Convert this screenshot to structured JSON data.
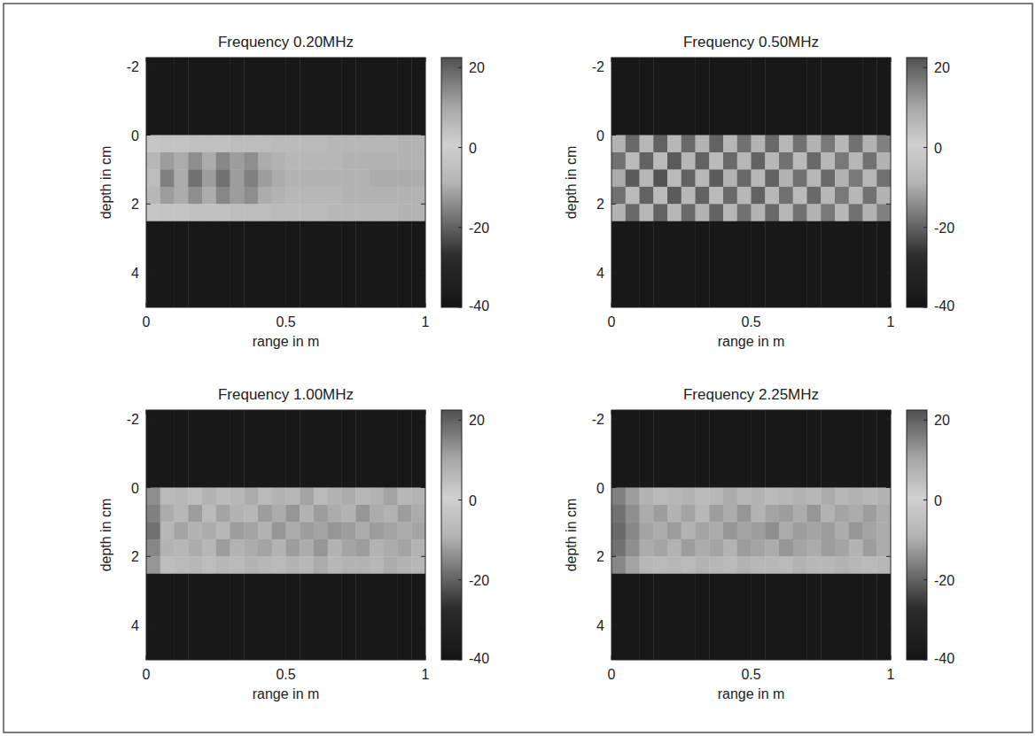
{
  "chart_data": [
    {
      "type": "heatmap",
      "title": "Frequency 0.20MHz",
      "x_label": "range in m",
      "y_label": "depth in cm",
      "xlim": [
        0,
        1
      ],
      "xticks": [
        0,
        0.5,
        1
      ],
      "ylim": [
        5,
        -2.25
      ],
      "yticks": [
        -2,
        0,
        2,
        4
      ],
      "x_edges": [
        0,
        0.05,
        0.1,
        0.15,
        0.2,
        0.25,
        0.3,
        0.35,
        0.4,
        0.45,
        0.5,
        0.55,
        0.6,
        0.65,
        0.7,
        0.75,
        0.8,
        0.85,
        0.9,
        0.95,
        1
      ],
      "y_edges": [
        -2.25,
        0,
        0.5,
        1,
        1.5,
        2,
        2.5,
        5
      ],
      "colorbar_range": [
        -40,
        22.5
      ],
      "colorbar_ticks": [
        20,
        0,
        -20,
        -40
      ],
      "cells": [
        [
          -38,
          -38,
          -38,
          -38,
          -38,
          -38,
          -38,
          -38,
          -38,
          -38,
          -38,
          -38,
          -38,
          -38,
          -38,
          -38,
          -38,
          -38,
          -38,
          -38
        ],
        [
          -3,
          -4,
          -4,
          -5,
          -5,
          -5,
          -6,
          -6,
          -6,
          -7,
          -7,
          -7,
          -7,
          -8,
          -8,
          -8,
          -8,
          -8,
          -9,
          -9
        ],
        [
          -8,
          -12,
          -10,
          -14,
          -10,
          -15,
          -12,
          -14,
          -10,
          -9,
          -8,
          -8,
          -8,
          -8,
          -9,
          -9,
          -9,
          -9,
          -9,
          -9
        ],
        [
          -6,
          -16,
          -10,
          -18,
          -12,
          -18,
          -12,
          -16,
          -12,
          -10,
          -9,
          -9,
          -9,
          -9,
          -9,
          -9,
          -10,
          -10,
          -10,
          -10
        ],
        [
          -8,
          -12,
          -10,
          -14,
          -10,
          -15,
          -12,
          -14,
          -10,
          -9,
          -8,
          -8,
          -8,
          -8,
          -9,
          -9,
          -9,
          -9,
          -9,
          -9
        ],
        [
          -3,
          -4,
          -4,
          -5,
          -5,
          -5,
          -6,
          -6,
          -6,
          -7,
          -7,
          -7,
          -7,
          -8,
          -8,
          -8,
          -8,
          -8,
          -9,
          -9
        ],
        [
          -38,
          -38,
          -38,
          -38,
          -38,
          -38,
          -38,
          -38,
          -38,
          -38,
          -38,
          -38,
          -38,
          -38,
          -38,
          -38,
          -38,
          -38,
          -38,
          -38
        ]
      ]
    },
    {
      "type": "heatmap",
      "title": "Frequency 0.50MHz",
      "x_label": "range in m",
      "y_label": "depth in cm",
      "xlim": [
        0,
        1
      ],
      "xticks": [
        0,
        0.5,
        1
      ],
      "ylim": [
        5,
        -2.25
      ],
      "yticks": [
        -2,
        0,
        2,
        4
      ],
      "x_edges": [
        0,
        0.05,
        0.1,
        0.15,
        0.2,
        0.25,
        0.3,
        0.35,
        0.4,
        0.45,
        0.5,
        0.55,
        0.6,
        0.65,
        0.7,
        0.75,
        0.8,
        0.85,
        0.9,
        0.95,
        1
      ],
      "y_edges": [
        -2.25,
        0,
        0.5,
        1,
        1.5,
        2,
        2.5,
        5
      ],
      "colorbar_range": [
        -40,
        22.5
      ],
      "colorbar_ticks": [
        20,
        0,
        -20,
        -40
      ],
      "cells": [
        [
          -38,
          -38,
          -38,
          -38,
          -38,
          -38,
          -38,
          -38,
          -38,
          -38,
          -38,
          -38,
          -38,
          -38,
          -38,
          -38,
          -38,
          -38,
          -38,
          -38
        ],
        [
          -9,
          -19,
          -8,
          -20,
          -8,
          -19,
          -9,
          -20,
          -8,
          -18,
          -9,
          -19,
          -8,
          -18,
          -9,
          -17,
          -8,
          -18,
          -9,
          -16
        ],
        [
          -18,
          -7,
          -20,
          -7,
          -21,
          -8,
          -20,
          -7,
          -19,
          -8,
          -20,
          -8,
          -18,
          -7,
          -19,
          -8,
          -17,
          -8,
          -18,
          -9
        ],
        [
          -10,
          -21,
          -8,
          -22,
          -7,
          -20,
          -8,
          -21,
          -9,
          -19,
          -8,
          -20,
          -9,
          -18,
          -8,
          -19,
          -9,
          -17,
          -8,
          -18
        ],
        [
          -18,
          -7,
          -20,
          -7,
          -21,
          -8,
          -20,
          -7,
          -19,
          -8,
          -20,
          -8,
          -18,
          -7,
          -19,
          -8,
          -17,
          -8,
          -18,
          -9
        ],
        [
          -9,
          -19,
          -8,
          -20,
          -8,
          -19,
          -9,
          -20,
          -8,
          -18,
          -9,
          -19,
          -8,
          -18,
          -9,
          -17,
          -8,
          -18,
          -9,
          -16
        ],
        [
          -38,
          -38,
          -38,
          -38,
          -38,
          -38,
          -38,
          -38,
          -38,
          -38,
          -38,
          -38,
          -38,
          -38,
          -38,
          -38,
          -38,
          -38,
          -38,
          -38
        ]
      ]
    },
    {
      "type": "heatmap",
      "title": "Frequency 1.00MHz",
      "x_label": "range in m",
      "y_label": "depth in cm",
      "xlim": [
        0,
        1
      ],
      "xticks": [
        0,
        0.5,
        1
      ],
      "ylim": [
        5,
        -2.25
      ],
      "yticks": [
        -2,
        0,
        2,
        4
      ],
      "x_edges": [
        0,
        0.05,
        0.1,
        0.15,
        0.2,
        0.25,
        0.3,
        0.35,
        0.4,
        0.45,
        0.5,
        0.55,
        0.6,
        0.65,
        0.7,
        0.75,
        0.8,
        0.85,
        0.9,
        0.95,
        1
      ],
      "y_edges": [
        -2.25,
        0,
        0.5,
        1,
        1.5,
        2,
        2.5,
        5
      ],
      "colorbar_range": [
        -40,
        22.5
      ],
      "colorbar_ticks": [
        20,
        0,
        -20,
        -40
      ],
      "cells": [
        [
          -38,
          -38,
          -38,
          -38,
          -38,
          -38,
          -38,
          -38,
          -38,
          -38,
          -38,
          -38,
          -38,
          -38,
          -38,
          -38,
          -38,
          -38,
          -38,
          -38
        ],
        [
          -14,
          -7,
          -8,
          -6,
          -9,
          -7,
          -8,
          -10,
          -7,
          -9,
          -8,
          -11,
          -7,
          -9,
          -10,
          -8,
          -9,
          -11,
          -8,
          -9
        ],
        [
          -16,
          -10,
          -8,
          -12,
          -7,
          -11,
          -9,
          -8,
          -12,
          -10,
          -13,
          -9,
          -12,
          -10,
          -9,
          -13,
          -10,
          -9,
          -12,
          -10
        ],
        [
          -18,
          -8,
          -11,
          -9,
          -10,
          -8,
          -12,
          -11,
          -9,
          -13,
          -10,
          -12,
          -11,
          -13,
          -12,
          -10,
          -12,
          -11,
          -10,
          -11
        ],
        [
          -15,
          -9,
          -8,
          -10,
          -8,
          -12,
          -9,
          -10,
          -11,
          -9,
          -12,
          -10,
          -13,
          -9,
          -11,
          -12,
          -9,
          -10,
          -11,
          -9
        ],
        [
          -13,
          -6,
          -7,
          -8,
          -6,
          -8,
          -7,
          -9,
          -8,
          -7,
          -9,
          -8,
          -10,
          -8,
          -9,
          -9,
          -8,
          -10,
          -9,
          -8
        ],
        [
          -38,
          -38,
          -38,
          -38,
          -38,
          -38,
          -38,
          -38,
          -38,
          -38,
          -38,
          -38,
          -38,
          -38,
          -38,
          -38,
          -38,
          -38,
          -38,
          -38
        ]
      ]
    },
    {
      "type": "heatmap",
      "title": "Frequency 2.25MHz",
      "x_label": "range in m",
      "y_label": "depth in cm",
      "xlim": [
        0,
        1
      ],
      "xticks": [
        0,
        0.5,
        1
      ],
      "ylim": [
        5,
        -2.25
      ],
      "yticks": [
        -2,
        0,
        2,
        4
      ],
      "x_edges": [
        0,
        0.05,
        0.1,
        0.15,
        0.2,
        0.25,
        0.3,
        0.35,
        0.4,
        0.45,
        0.5,
        0.55,
        0.6,
        0.65,
        0.7,
        0.75,
        0.8,
        0.85,
        0.9,
        0.95,
        1
      ],
      "y_edges": [
        -2.25,
        0,
        0.5,
        1,
        1.5,
        2,
        2.5,
        5
      ],
      "colorbar_range": [
        -40,
        22.5
      ],
      "colorbar_ticks": [
        20,
        0,
        -20,
        -40
      ],
      "cells": [
        [
          -38,
          -38,
          -38,
          -38,
          -38,
          -38,
          -38,
          -38,
          -38,
          -38,
          -38,
          -38,
          -38,
          -38,
          -38,
          -38,
          -38,
          -38,
          -38,
          -38
        ],
        [
          -16,
          -12,
          -9,
          -7,
          -8,
          -9,
          -7,
          -8,
          -10,
          -8,
          -9,
          -7,
          -8,
          -9,
          -8,
          -10,
          -8,
          -9,
          -8,
          -9
        ],
        [
          -18,
          -14,
          -10,
          -12,
          -9,
          -11,
          -8,
          -12,
          -10,
          -13,
          -9,
          -11,
          -12,
          -10,
          -13,
          -9,
          -11,
          -10,
          -12,
          -10
        ],
        [
          -19,
          -15,
          -11,
          -10,
          -12,
          -9,
          -11,
          -10,
          -13,
          -11,
          -12,
          -14,
          -10,
          -12,
          -11,
          -12,
          -10,
          -13,
          -11,
          -10
        ],
        [
          -18,
          -14,
          -10,
          -11,
          -9,
          -12,
          -10,
          -11,
          -9,
          -12,
          -11,
          -10,
          -13,
          -11,
          -10,
          -12,
          -11,
          -9,
          -12,
          -10
        ],
        [
          -15,
          -11,
          -8,
          -7,
          -8,
          -7,
          -9,
          -8,
          -7,
          -9,
          -8,
          -8,
          -7,
          -9,
          -8,
          -8,
          -9,
          -8,
          -7,
          -8
        ],
        [
          -38,
          -38,
          -38,
          -38,
          -38,
          -38,
          -38,
          -38,
          -38,
          -38,
          -38,
          -38,
          -38,
          -38,
          -38,
          -38,
          -38,
          -38,
          -38,
          -38
        ]
      ]
    }
  ]
}
